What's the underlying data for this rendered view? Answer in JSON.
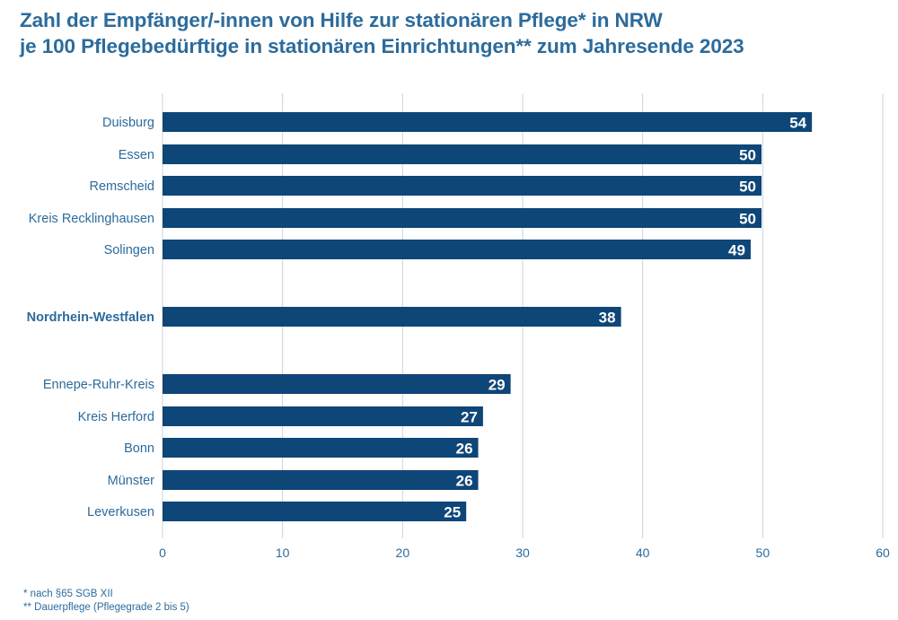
{
  "title": {
    "line1": "Zahl der Empfänger/-innen von Hilfe zur stationären Pflege* in NRW",
    "line2": "je 100 Pflegebedürftige in stationären Einrichtungen** zum Jahresende 2023"
  },
  "footnotes": [
    "* nach §65 SGB XII",
    "** Dauerpflege (Pflegegrade 2 bis 5)"
  ],
  "colors": {
    "bar": "#0e4678",
    "title": "#2c6b9c",
    "label": "#2c6b9c",
    "value_label": "#ffffff",
    "grid": "#c9d3dd"
  },
  "chart_data": {
    "type": "bar",
    "orientation": "horizontal",
    "categories": [
      "Duisburg",
      "Essen",
      "Remscheid",
      "Kreis Recklinghausen",
      "Solingen",
      "Nordrhein-Westfalen",
      "Ennepe-Ruhr-Kreis",
      "Kreis Herford",
      "Bonn",
      "Münster",
      "Leverkusen"
    ],
    "values": [
      54.1,
      49.9,
      49.9,
      49.9,
      49.0,
      38.2,
      29.0,
      26.7,
      26.3,
      26.3,
      25.3
    ],
    "value_labels": [
      "54",
      "50",
      "50",
      "50",
      "49",
      "38",
      "29",
      "27",
      "26",
      "26",
      "25"
    ],
    "highlight": "Nordrhein-Westfalen",
    "xlim": [
      0,
      60
    ],
    "xticks": [
      0,
      10,
      20,
      30,
      40,
      50,
      60
    ],
    "grid": true,
    "legend": "none"
  }
}
